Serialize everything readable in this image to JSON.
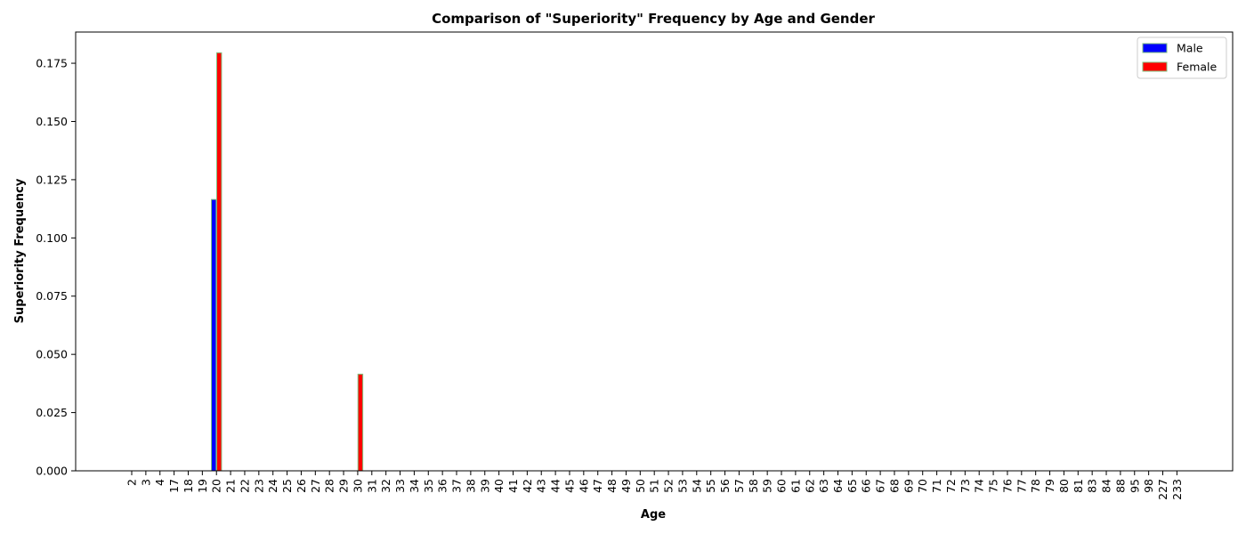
{
  "chart_data": {
    "type": "bar",
    "title": "Comparison of \"Superiority\" Frequency by Age and Gender",
    "xlabel": "Age",
    "ylabel": "Superiority Frequency",
    "ylim": [
      0,
      0.1884
    ],
    "yticks": [
      "0.000",
      "0.025",
      "0.050",
      "0.075",
      "0.100",
      "0.125",
      "0.150",
      "0.175"
    ],
    "legend_position": "top-right",
    "grid": false,
    "categories": [
      "2",
      "3",
      "4",
      "17",
      "18",
      "19",
      "20",
      "21",
      "22",
      "23",
      "24",
      "25",
      "26",
      "27",
      "28",
      "29",
      "30",
      "31",
      "32",
      "33",
      "34",
      "35",
      "36",
      "37",
      "38",
      "39",
      "40",
      "41",
      "42",
      "43",
      "44",
      "45",
      "46",
      "47",
      "48",
      "49",
      "50",
      "51",
      "52",
      "53",
      "54",
      "55",
      "56",
      "57",
      "58",
      "59",
      "60",
      "61",
      "62",
      "63",
      "64",
      "65",
      "66",
      "67",
      "68",
      "69",
      "70",
      "71",
      "72",
      "73",
      "74",
      "75",
      "76",
      "77",
      "78",
      "79",
      "80",
      "81",
      "83",
      "84",
      "88",
      "95",
      "98",
      "227",
      "233"
    ],
    "series": [
      {
        "name": "Male",
        "color": "#0000ff",
        "edge_color": "#7fbf7f",
        "values": [
          0,
          0,
          0,
          0,
          0,
          0,
          0.1165,
          0,
          0,
          0,
          0,
          0,
          0,
          0,
          0,
          0,
          0,
          0,
          0,
          0,
          0,
          0,
          0,
          0,
          0,
          0,
          0,
          0,
          0,
          0,
          0,
          0,
          0,
          0,
          0,
          0,
          0,
          0,
          0,
          0,
          0,
          0,
          0,
          0,
          0,
          0,
          0,
          0,
          0,
          0,
          0,
          0,
          0,
          0,
          0,
          0,
          0,
          0,
          0,
          0,
          0,
          0,
          0,
          0,
          0,
          0,
          0,
          0,
          0,
          0,
          0,
          0,
          0,
          0,
          0
        ]
      },
      {
        "name": "Female",
        "color": "#ff0000",
        "edge_color": "#7fbf7f",
        "values": [
          0,
          0,
          0,
          0,
          0,
          0,
          0.1795,
          0,
          0,
          0,
          0,
          0,
          0,
          0,
          0,
          0,
          0.0415,
          0,
          0,
          0,
          0,
          0,
          0,
          0,
          0,
          0,
          0,
          0,
          0,
          0,
          0,
          0,
          0,
          0,
          0,
          0,
          0,
          0,
          0,
          0,
          0,
          0,
          0,
          0,
          0,
          0,
          0,
          0,
          0,
          0,
          0,
          0,
          0,
          0,
          0,
          0,
          0,
          0,
          0,
          0,
          0,
          0,
          0,
          0,
          0,
          0,
          0,
          0,
          0,
          0,
          0,
          0,
          0,
          0,
          0
        ]
      }
    ]
  }
}
